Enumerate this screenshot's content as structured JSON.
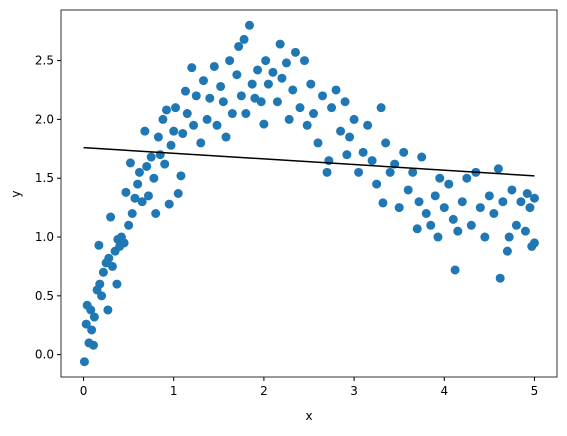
{
  "chart_data": {
    "type": "scatter",
    "xlabel": "x",
    "ylabel": "y",
    "xlim": [
      -0.25,
      5.25
    ],
    "ylim": [
      -0.19,
      2.93
    ],
    "xticks": [
      0,
      1,
      2,
      3,
      4,
      5
    ],
    "yticks": [
      {
        "value": 0,
        "label": "0.0"
      },
      0.5,
      {
        "value": 1,
        "label": "1.0"
      },
      1.5,
      {
        "value": 2,
        "label": "2.0"
      },
      2.5
    ],
    "series": [
      {
        "type": "scatter",
        "color": "#1f77b4",
        "x": [
          0.01,
          0.03,
          0.04,
          0.06,
          0.08,
          0.09,
          0.11,
          0.12,
          0.15,
          0.17,
          0.18,
          0.2,
          0.22,
          0.25,
          0.27,
          0.28,
          0.3,
          0.32,
          0.35,
          0.37,
          0.38,
          0.4,
          0.42,
          0.45,
          0.47,
          0.5,
          0.52,
          0.54,
          0.57,
          0.6,
          0.62,
          0.65,
          0.68,
          0.7,
          0.72,
          0.75,
          0.78,
          0.8,
          0.83,
          0.85,
          0.88,
          0.9,
          0.92,
          0.95,
          0.97,
          1.0,
          1.02,
          1.05,
          1.08,
          1.1,
          1.13,
          1.15,
          1.2,
          1.22,
          1.25,
          1.3,
          1.33,
          1.37,
          1.4,
          1.45,
          1.48,
          1.52,
          1.55,
          1.58,
          1.62,
          1.65,
          1.7,
          1.72,
          1.75,
          1.78,
          1.8,
          1.84,
          1.87,
          1.9,
          1.93,
          1.97,
          2.0,
          2.02,
          2.05,
          2.1,
          2.15,
          2.18,
          2.2,
          2.25,
          2.28,
          2.32,
          2.35,
          2.4,
          2.45,
          2.48,
          2.52,
          2.55,
          2.6,
          2.65,
          2.7,
          2.72,
          2.75,
          2.8,
          2.85,
          2.9,
          2.92,
          2.95,
          3.0,
          3.05,
          3.1,
          3.15,
          3.2,
          3.25,
          3.3,
          3.32,
          3.35,
          3.4,
          3.45,
          3.5,
          3.55,
          3.6,
          3.65,
          3.7,
          3.72,
          3.75,
          3.8,
          3.85,
          3.9,
          3.93,
          3.95,
          4.0,
          4.05,
          4.1,
          4.12,
          4.15,
          4.2,
          4.25,
          4.3,
          4.35,
          4.4,
          4.45,
          4.5,
          4.55,
          4.6,
          4.62,
          4.65,
          4.7,
          4.72,
          4.75,
          4.8,
          4.85,
          4.9,
          4.92,
          4.95,
          4.97,
          5.0,
          5.0
        ],
        "y": [
          -0.06,
          0.26,
          0.42,
          0.1,
          0.38,
          0.21,
          0.08,
          0.32,
          0.55,
          0.93,
          0.6,
          0.5,
          0.7,
          0.78,
          0.38,
          0.82,
          1.17,
          0.75,
          0.88,
          0.6,
          0.98,
          0.92,
          1.0,
          0.95,
          1.38,
          1.1,
          1.63,
          1.2,
          1.33,
          1.45,
          1.55,
          1.3,
          1.9,
          1.6,
          1.35,
          1.68,
          1.5,
          1.2,
          1.85,
          1.7,
          2.0,
          1.62,
          2.08,
          1.28,
          1.78,
          1.9,
          2.1,
          1.37,
          1.52,
          1.88,
          2.24,
          2.05,
          2.44,
          1.95,
          2.2,
          1.8,
          2.33,
          2.0,
          2.18,
          2.45,
          1.95,
          2.28,
          2.15,
          1.85,
          2.5,
          2.05,
          2.38,
          2.62,
          2.2,
          2.68,
          2.05,
          2.8,
          2.3,
          2.18,
          2.42,
          2.15,
          1.96,
          2.5,
          2.3,
          2.4,
          2.15,
          2.64,
          2.35,
          2.48,
          2.0,
          2.25,
          2.57,
          2.1,
          2.5,
          1.95,
          2.3,
          2.05,
          1.8,
          2.2,
          1.55,
          1.65,
          2.1,
          2.25,
          1.9,
          2.15,
          1.7,
          1.85,
          2.0,
          1.55,
          1.72,
          1.95,
          1.65,
          1.45,
          2.1,
          1.29,
          1.8,
          1.55,
          1.62,
          1.25,
          1.72,
          1.4,
          1.55,
          1.07,
          1.3,
          1.68,
          1.2,
          1.1,
          1.35,
          1.0,
          1.5,
          1.25,
          1.45,
          1.15,
          0.72,
          1.05,
          1.3,
          1.5,
          1.1,
          1.55,
          1.25,
          1.0,
          1.35,
          1.2,
          1.58,
          0.65,
          1.3,
          0.88,
          1.0,
          1.4,
          1.1,
          1.3,
          1.05,
          1.37,
          1.25,
          0.92,
          0.95,
          1.33
        ]
      },
      {
        "type": "line",
        "color": "#000000",
        "x": [
          0,
          5
        ],
        "y": [
          1.76,
          1.52
        ]
      }
    ]
  }
}
